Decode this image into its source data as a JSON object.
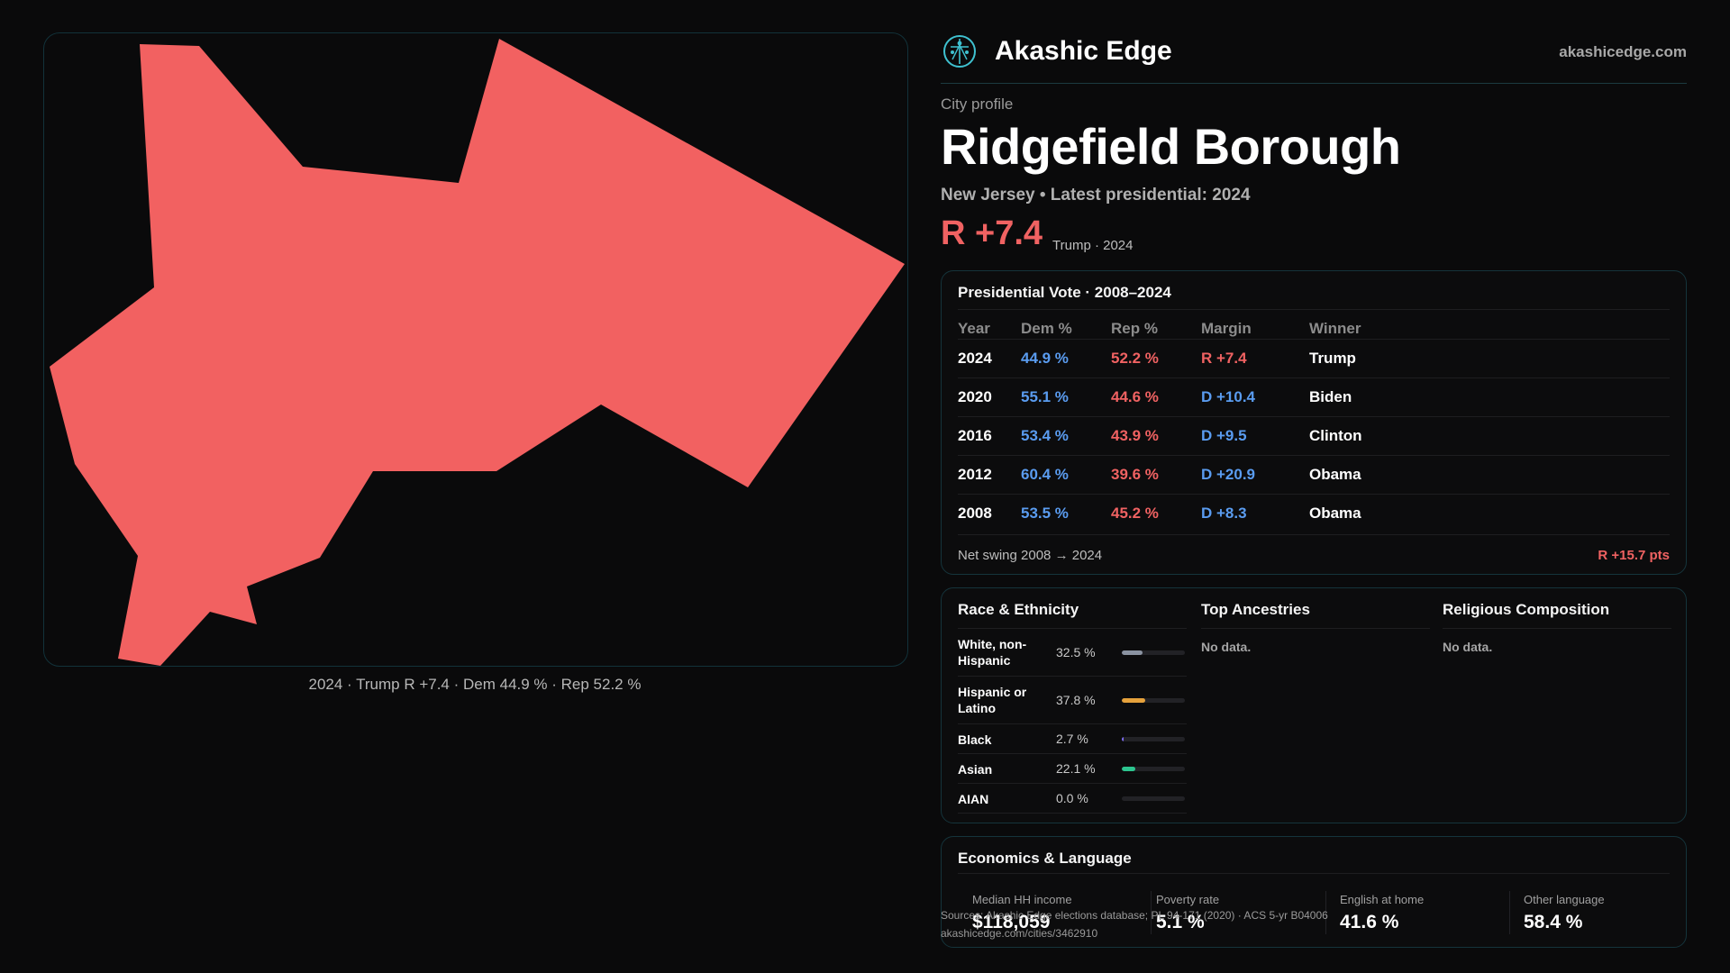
{
  "colors": {
    "rep": "#f06262",
    "dem": "#5a9cf0",
    "accent": "#3fc1d0"
  },
  "map": {
    "caption": "2024 · Trump R +7.4 · Dem 44.9 % · Rep 52.2 %",
    "fill": "#f26161"
  },
  "header": {
    "brand": "Akashic Edge",
    "site": "akashicedge.com",
    "logo_icon": "tree-of-life-icon"
  },
  "profile": {
    "kicker": "City profile",
    "title": "Ridgefield Borough",
    "subtitle": "New Jersey • Latest presidential: 2024",
    "margin": "R +7.4",
    "margin_note": "Trump · 2024"
  },
  "vote": {
    "title": "Presidential Vote · 2008–2024",
    "headers": [
      "Year",
      "Dem %",
      "Rep %",
      "Margin",
      "Winner"
    ],
    "rows": [
      {
        "year": "2024",
        "dem": "44.9 %",
        "rep": "52.2 %",
        "margin": "R +7.4",
        "party": "rep",
        "winner": "Trump"
      },
      {
        "year": "2020",
        "dem": "55.1 %",
        "rep": "44.6 %",
        "margin": "D +10.4",
        "party": "dem",
        "winner": "Biden"
      },
      {
        "year": "2016",
        "dem": "53.4 %",
        "rep": "43.9 %",
        "margin": "D +9.5",
        "party": "dem",
        "winner": "Clinton"
      },
      {
        "year": "2012",
        "dem": "60.4 %",
        "rep": "39.6 %",
        "margin": "D +20.9",
        "party": "dem",
        "winner": "Obama"
      },
      {
        "year": "2008",
        "dem": "53.5 %",
        "rep": "45.2 %",
        "margin": "D +8.3",
        "party": "dem",
        "winner": "Obama"
      }
    ],
    "swing_label": "Net swing 2008 → 2024",
    "swing_value": "R +15.7 pts"
  },
  "race": {
    "title": "Race & Ethnicity",
    "rows": [
      {
        "label": "White, non-Hispanic",
        "value": "32.5 %",
        "pct": 32.5,
        "color": "#8b93a1"
      },
      {
        "label": "Hispanic or Latino",
        "value": "37.8 %",
        "pct": 37.8,
        "color": "#e6a23c"
      },
      {
        "label": "Black",
        "value": "2.7 %",
        "pct": 2.7,
        "color": "#7c6cf0"
      },
      {
        "label": "Asian",
        "value": "22.1 %",
        "pct": 22.1,
        "color": "#2cc58f"
      },
      {
        "label": "AIAN",
        "value": "0.0 %",
        "pct": 0.0,
        "color": "#c06ad8"
      }
    ]
  },
  "ancestries": {
    "title": "Top Ancestries",
    "empty": "No data."
  },
  "religion": {
    "title": "Religious Composition",
    "empty": "No data."
  },
  "econ": {
    "title": "Economics & Language",
    "stats": [
      {
        "label": "Median HH income",
        "value": "$118,059"
      },
      {
        "label": "Poverty rate",
        "value": "5.1 %"
      },
      {
        "label": "English at home",
        "value": "41.6 %"
      },
      {
        "label": "Other language",
        "value": "58.4 %"
      }
    ]
  },
  "source": {
    "line1": "Sources: Akashic Edge elections database; PL 94-171 (2020) · ACS 5-yr B04006",
    "line2": "akashicedge.com/cities/3462910"
  }
}
